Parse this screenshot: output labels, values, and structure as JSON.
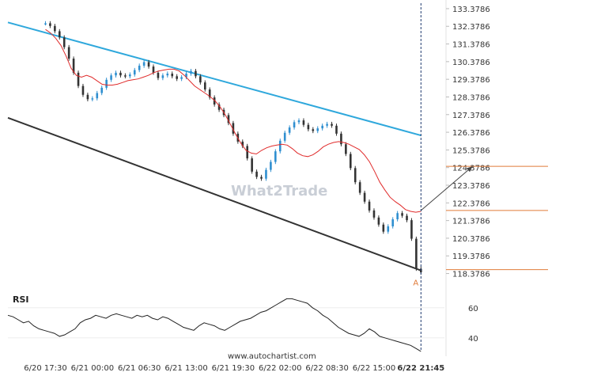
{
  "chart_data": {
    "type": "candlestick",
    "y_ticks": [
      "133.3786",
      "132.3786",
      "131.3786",
      "130.3786",
      "129.3786",
      "128.3786",
      "127.3786",
      "126.3786",
      "125.3786",
      "124.3786",
      "123.3786",
      "122.3786",
      "121.3786",
      "120.3786",
      "119.3786",
      "118.3786"
    ],
    "ylim": [
      118.0,
      133.6
    ],
    "x_ticks": [
      "6/20 17:30",
      "6/21 00:00",
      "6/21 06:30",
      "6/21 13:00",
      "6/21 19:30",
      "6/22 02:00",
      "6/22 08:30",
      "6/22 15:00",
      "6/22 21:45"
    ],
    "x_tick_positions": [
      0,
      10,
      20,
      30,
      40,
      50,
      60,
      70,
      80
    ],
    "x_range": [
      -8,
      85
    ],
    "current_time_index": 80,
    "close": [
      132.55,
      132.4,
      132.1,
      131.75,
      131.2,
      130.55,
      129.75,
      129.0,
      128.5,
      128.25,
      128.3,
      128.6,
      128.9,
      129.35,
      129.6,
      129.75,
      129.6,
      129.55,
      129.65,
      129.9,
      130.15,
      130.35,
      130.1,
      129.75,
      129.45,
      129.6,
      129.7,
      129.55,
      129.4,
      129.5,
      129.7,
      129.85,
      129.55,
      129.2,
      128.8,
      128.35,
      127.95,
      127.65,
      127.35,
      126.9,
      126.3,
      125.85,
      125.6,
      124.9,
      124.15,
      123.85,
      123.75,
      124.25,
      124.7,
      125.3,
      125.9,
      126.35,
      126.65,
      126.95,
      127.05,
      126.8,
      126.55,
      126.45,
      126.6,
      126.75,
      126.85,
      126.75,
      126.3,
      125.7,
      125.15,
      124.35,
      123.55,
      122.95,
      122.45,
      121.95,
      121.55,
      121.15,
      120.75,
      121.05,
      121.45,
      121.8,
      121.65,
      121.4,
      120.35,
      118.65,
      118.45
    ],
    "moving_average": [
      132.2,
      132.0,
      131.7,
      131.3,
      130.7,
      130.0,
      129.6,
      129.5,
      129.6,
      129.5,
      129.3,
      129.1,
      129.05,
      129.05,
      129.1,
      129.2,
      129.3,
      129.35,
      129.4,
      129.5,
      129.6,
      129.75,
      129.85,
      129.9,
      129.95,
      129.95,
      129.85,
      129.6,
      129.3,
      129.0,
      128.8,
      128.6,
      128.4,
      128.15,
      127.8,
      127.35,
      126.8,
      126.25,
      125.75,
      125.35,
      125.2,
      125.15,
      125.35,
      125.5,
      125.6,
      125.65,
      125.7,
      125.65,
      125.45,
      125.2,
      125.05,
      125.0,
      125.1,
      125.3,
      125.55,
      125.7,
      125.8,
      125.85,
      125.8,
      125.7,
      125.55,
      125.4,
      125.1,
      124.7,
      124.15,
      123.55,
      123.1,
      122.7,
      122.45,
      122.25,
      122.0,
      121.9,
      121.85,
      121.9
    ],
    "resistance_line": {
      "start": [
        -8,
        132.6
      ],
      "end": [
        80,
        126.2
      ]
    },
    "support_line": {
      "start": [
        -8,
        127.2
      ],
      "end": [
        80,
        118.55
      ]
    },
    "levels": [
      124.45,
      121.95,
      118.6
    ],
    "forecast_arrow": {
      "start": [
        80,
        121.95
      ],
      "end": [
        91,
        124.45
      ]
    },
    "point_labels": [
      {
        "text": "A",
        "x": 79,
        "y": 118.25
      }
    ],
    "rsi": {
      "label": "RSI",
      "ticks": [
        "60",
        "40"
      ],
      "ylim": [
        32,
        72
      ],
      "values": [
        55,
        54,
        52,
        50,
        51,
        48,
        46,
        45,
        44,
        43,
        41,
        42,
        44,
        46,
        50,
        52,
        53,
        55,
        54,
        53,
        55,
        56,
        55,
        54,
        53,
        55,
        54,
        55,
        53,
        52,
        54,
        53,
        51,
        49,
        47,
        46,
        45,
        48,
        50,
        49,
        48,
        46,
        45,
        47,
        49,
        51,
        52,
        53,
        55,
        57,
        58,
        60,
        62,
        64,
        66,
        66,
        65,
        64,
        63,
        60,
        58,
        55,
        53,
        50,
        47,
        45,
        43,
        42,
        41,
        43,
        46,
        44,
        41,
        40,
        39,
        38,
        37,
        36,
        35,
        33,
        31
      ]
    },
    "watermark": "What2Trade",
    "source": "www.autochartist.com"
  }
}
